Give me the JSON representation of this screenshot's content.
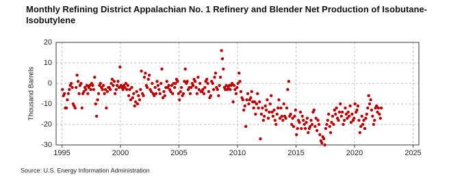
{
  "chart_data": {
    "type": "scatter",
    "title": "Monthly Refining District Appalachian No. 1 Refinery and Blender Net Production of Isobutane-Isobutylene",
    "y_label": "Thousand Barrels",
    "source": "Source: U.S. Energy Information Administration",
    "color": "#c00000",
    "grid": true,
    "xlim": [
      1994.5,
      2025.5
    ],
    "xticks": [
      1995,
      2000,
      2005,
      2010,
      2015,
      2020,
      2025
    ],
    "ylim": [
      -30,
      20
    ],
    "yticks": [
      -30,
      -20,
      -10,
      0,
      10,
      20
    ],
    "x": [
      1995.04,
      1995.13,
      1995.21,
      1995.29,
      1995.38,
      1995.46,
      1995.54,
      1995.63,
      1995.71,
      1995.79,
      1995.88,
      1995.96,
      1996.04,
      1996.13,
      1996.21,
      1996.29,
      1996.38,
      1996.46,
      1996.54,
      1996.63,
      1996.71,
      1996.79,
      1996.88,
      1996.96,
      1997.04,
      1997.13,
      1997.21,
      1997.29,
      1997.38,
      1997.46,
      1997.54,
      1997.63,
      1997.71,
      1997.79,
      1997.88,
      1997.96,
      1998.04,
      1998.13,
      1998.21,
      1998.29,
      1998.38,
      1998.46,
      1998.54,
      1998.63,
      1998.71,
      1998.79,
      1998.88,
      1998.96,
      1999.04,
      1999.13,
      1999.21,
      1999.29,
      1999.38,
      1999.46,
      1999.54,
      1999.63,
      1999.71,
      1999.79,
      1999.88,
      1999.96,
      2000.04,
      2000.13,
      2000.21,
      2000.29,
      2000.38,
      2000.46,
      2000.54,
      2000.63,
      2000.71,
      2000.79,
      2000.88,
      2000.96,
      2001.04,
      2001.13,
      2001.21,
      2001.29,
      2001.38,
      2001.46,
      2001.54,
      2001.63,
      2001.71,
      2001.79,
      2001.88,
      2001.96,
      2002.04,
      2002.13,
      2002.21,
      2002.29,
      2002.38,
      2002.46,
      2002.54,
      2002.63,
      2002.71,
      2002.79,
      2002.88,
      2002.96,
      2003.04,
      2003.13,
      2003.21,
      2003.29,
      2003.38,
      2003.46,
      2003.54,
      2003.63,
      2003.71,
      2003.79,
      2003.88,
      2003.96,
      2004.04,
      2004.13,
      2004.21,
      2004.29,
      2004.38,
      2004.46,
      2004.54,
      2004.63,
      2004.71,
      2004.79,
      2004.88,
      2004.96,
      2005.04,
      2005.13,
      2005.21,
      2005.29,
      2005.38,
      2005.46,
      2005.54,
      2005.63,
      2005.71,
      2005.79,
      2005.88,
      2005.96,
      2006.04,
      2006.13,
      2006.21,
      2006.29,
      2006.38,
      2006.46,
      2006.54,
      2006.63,
      2006.71,
      2006.79,
      2006.88,
      2006.96,
      2007.04,
      2007.13,
      2007.21,
      2007.29,
      2007.38,
      2007.46,
      2007.54,
      2007.63,
      2007.71,
      2007.79,
      2007.88,
      2007.96,
      2008.04,
      2008.13,
      2008.21,
      2008.29,
      2008.38,
      2008.46,
      2008.54,
      2008.63,
      2008.71,
      2008.79,
      2008.88,
      2008.96,
      2009.04,
      2009.13,
      2009.21,
      2009.29,
      2009.38,
      2009.46,
      2009.54,
      2009.63,
      2009.71,
      2009.79,
      2009.88,
      2009.96,
      2010.04,
      2010.13,
      2010.21,
      2010.29,
      2010.38,
      2010.46,
      2010.54,
      2010.63,
      2010.71,
      2010.79,
      2010.88,
      2010.96,
      2011.04,
      2011.13,
      2011.21,
      2011.29,
      2011.38,
      2011.46,
      2011.54,
      2011.63,
      2011.71,
      2011.79,
      2011.88,
      2011.96,
      2012.04,
      2012.13,
      2012.21,
      2012.29,
      2012.38,
      2012.46,
      2012.54,
      2012.63,
      2012.71,
      2012.79,
      2012.88,
      2012.96,
      2013.04,
      2013.13,
      2013.21,
      2013.29,
      2013.38,
      2013.46,
      2013.54,
      2013.63,
      2013.71,
      2013.79,
      2013.88,
      2013.96,
      2014.04,
      2014.13,
      2014.21,
      2014.29,
      2014.38,
      2014.46,
      2014.54,
      2014.63,
      2014.71,
      2014.79,
      2014.88,
      2014.96,
      2015.04,
      2015.13,
      2015.21,
      2015.29,
      2015.38,
      2015.46,
      2015.54,
      2015.63,
      2015.71,
      2015.79,
      2015.88,
      2015.96,
      2016.04,
      2016.13,
      2016.21,
      2016.29,
      2016.38,
      2016.46,
      2016.54,
      2016.63,
      2016.71,
      2016.79,
      2016.88,
      2016.96,
      2017.04,
      2017.13,
      2017.21,
      2017.29,
      2017.38,
      2017.46,
      2017.54,
      2017.63,
      2017.71,
      2017.79,
      2017.88,
      2017.96,
      2018.04,
      2018.13,
      2018.21,
      2018.29,
      2018.38,
      2018.46,
      2018.54,
      2018.63,
      2018.71,
      2018.79,
      2018.88,
      2018.96,
      2019.04,
      2019.13,
      2019.21,
      2019.29,
      2019.38,
      2019.46,
      2019.54,
      2019.63,
      2019.71,
      2019.79,
      2019.88,
      2019.96,
      2020.04,
      2020.13,
      2020.21,
      2020.29,
      2020.38,
      2020.46,
      2020.54,
      2020.63,
      2020.71,
      2020.79,
      2020.88,
      2020.96,
      2021.04,
      2021.13,
      2021.21,
      2021.29,
      2021.38,
      2021.46,
      2021.54,
      2021.63,
      2021.71,
      2021.79,
      2021.88,
      2021.96,
      2022.04,
      2022.13,
      2022.21,
      2022.29
    ],
    "values": [
      -3,
      -6,
      -5,
      -12,
      -12,
      -8,
      -5,
      -3,
      -1,
      0,
      -2,
      -10,
      -11,
      -12,
      -2,
      4,
      1,
      -5,
      -1,
      0,
      -12,
      -5,
      -4,
      -2,
      -3,
      -1,
      -5,
      -2,
      -1,
      -3,
      0,
      -1,
      -3,
      3,
      -10,
      -16,
      -8,
      -5,
      -1,
      0,
      -2,
      -3,
      -1,
      -5,
      -3,
      -12,
      -4,
      -2,
      -2,
      -3,
      0,
      2,
      -1,
      1,
      -5,
      -3,
      -1,
      1,
      -2,
      8,
      -1,
      -2,
      -3,
      -1,
      -2,
      0,
      -3,
      -1,
      -6,
      -3,
      -8,
      -2,
      -7,
      -5,
      -11,
      -9,
      -4,
      -10,
      -6,
      -8,
      -3,
      6,
      -5,
      -6,
      3,
      5,
      -1,
      -2,
      2,
      4,
      -3,
      -4,
      0,
      -5,
      -6,
      -2,
      -5,
      1,
      -1,
      -3,
      -5,
      0,
      7,
      -7,
      -4,
      -6,
      -2,
      1,
      -2,
      -1,
      -3,
      -4,
      -1,
      -5,
      0,
      -2,
      0,
      2,
      1,
      -5,
      -8,
      -4,
      -2,
      -6,
      -5,
      1,
      7,
      0,
      1,
      -3,
      -2,
      -5,
      -2,
      0,
      -1,
      2,
      1,
      -2,
      -5,
      3,
      -3,
      0,
      -4,
      -4,
      -3,
      -5,
      -2,
      1,
      2,
      0,
      -4,
      -7,
      -6,
      1,
      0,
      -3,
      3,
      5,
      -2,
      -3,
      -6,
      -1,
      3,
      16,
      12,
      7,
      -2,
      -3,
      -1,
      -3,
      -2,
      -1,
      -3,
      -1,
      0,
      -9,
      -1,
      -3,
      -5,
      -2,
      0,
      5,
      1,
      -4,
      -7,
      -8,
      -13,
      -11,
      -21,
      -8,
      -5,
      -10,
      -8,
      -7,
      -4,
      -9,
      -12,
      -9,
      -15,
      -10,
      -5,
      -12,
      -9,
      -27,
      -15,
      -12,
      -18,
      -16,
      -11,
      -13,
      -8,
      -17,
      -14,
      -10,
      -6,
      -14,
      -16,
      -13,
      -18,
      -20,
      -15,
      -12,
      -8,
      -17,
      -12,
      -16,
      -18,
      -10,
      -16,
      -17,
      -12,
      -3,
      1,
      -16,
      -15,
      -20,
      -17,
      -21,
      -16,
      -13,
      -25,
      -22,
      -18,
      -19,
      -14,
      -22,
      -16,
      -18,
      -20,
      -22,
      -19,
      -17,
      -24,
      -22,
      -21,
      -18,
      -20,
      -14,
      -13,
      -21,
      -17,
      -23,
      -18,
      -20,
      -25,
      -28,
      -29,
      -26,
      -27,
      -30,
      -22,
      -20,
      -18,
      -15,
      -21,
      -24,
      -19,
      -16,
      -20,
      -13,
      -15,
      -12,
      -17,
      -18,
      -14,
      -10,
      -16,
      -14,
      -20,
      -18,
      -12,
      -15,
      -17,
      -14,
      -16,
      -11,
      -19,
      -15,
      -18,
      -17,
      -10,
      -14,
      -13,
      -11,
      -18,
      -24,
      -21,
      -16,
      -20,
      -18,
      -22,
      -17,
      -15,
      -12,
      -6,
      -10,
      -8,
      -13,
      -16,
      -20,
      -18,
      -12,
      -11,
      -14,
      -12,
      -15,
      -17,
      -12
    ]
  }
}
